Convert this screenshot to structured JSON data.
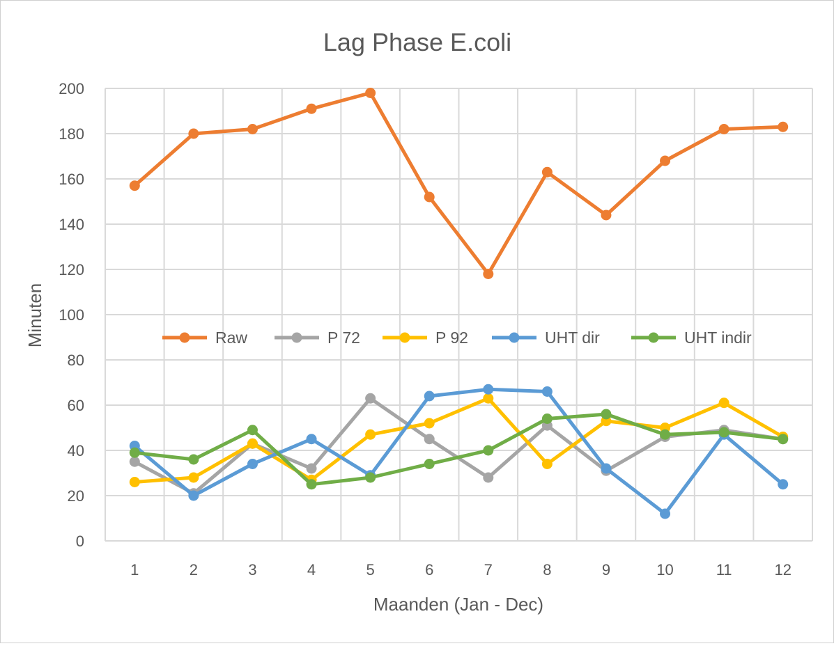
{
  "chart_data": {
    "type": "line",
    "title": "Lag Phase E.coli",
    "xlabel": "Maanden (Jan - Dec)",
    "ylabel": "Minuten",
    "categories": [
      "1",
      "2",
      "3",
      "4",
      "5",
      "6",
      "7",
      "8",
      "9",
      "10",
      "11",
      "12"
    ],
    "ylim": [
      0,
      200
    ],
    "yticks": [
      "0",
      "20",
      "40",
      "60",
      "80",
      "100",
      "120",
      "140",
      "160",
      "180",
      "200"
    ],
    "grid": true,
    "legend_position": "center",
    "series": [
      {
        "name": "Raw",
        "color": "#ED7D31",
        "values": [
          157,
          180,
          182,
          191,
          198,
          152,
          118,
          163,
          144,
          168,
          182,
          183
        ]
      },
      {
        "name": "P 72",
        "color": "#A5A5A5",
        "values": [
          35,
          21,
          43,
          32,
          63,
          45,
          28,
          51,
          31,
          46,
          49,
          45
        ]
      },
      {
        "name": "P 92",
        "color": "#FFC000",
        "values": [
          26,
          28,
          43,
          27,
          47,
          52,
          63,
          34,
          53,
          50,
          61,
          46
        ]
      },
      {
        "name": "UHT dir",
        "color": "#5B9BD5",
        "values": [
          42,
          20,
          34,
          45,
          29,
          64,
          67,
          66,
          32,
          12,
          47,
          25
        ]
      },
      {
        "name": "UHT indir",
        "color": "#70AD47",
        "values": [
          39,
          36,
          49,
          25,
          28,
          34,
          40,
          54,
          56,
          47,
          48,
          45
        ]
      }
    ]
  }
}
